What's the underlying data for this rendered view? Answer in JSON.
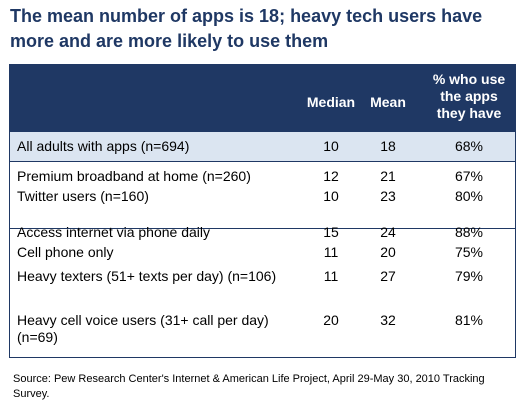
{
  "title": "The mean number of apps is 18; heavy tech users have more and are more likely to use them",
  "chart_data": {
    "type": "table",
    "columns": [
      "Median",
      "Mean",
      "% who use the apps they have"
    ],
    "rows": [
      {
        "label": "All adults with apps (n=694)",
        "median": "10",
        "mean": "18",
        "pct": "68%"
      },
      {
        "label": "Premium broadband at home (n=260)",
        "median": "12",
        "mean": "21",
        "pct": "67%"
      },
      {
        "label": "Twitter users (n=160)",
        "median": "10",
        "mean": "23",
        "pct": "80%"
      },
      {
        "label": "Access internet via phone daily",
        "median": "15",
        "mean": "24",
        "pct": "88%"
      },
      {
        "label": "Cell phone only",
        "median": "11",
        "mean": "20",
        "pct": "75%"
      },
      {
        "label": "Heavy texters (51+ texts per day) (n=106)",
        "median": "11",
        "mean": "27",
        "pct": "79%"
      },
      {
        "label": "Heavy cell voice users (31+ call per day) (n=69)",
        "median": "20",
        "mean": "32",
        "pct": "81%"
      }
    ]
  },
  "source": "Source:  Pew Research Center's Internet & American Life Project, April 29-May 30, 2010 Tracking Survey.",
  "colors": {
    "header": "#1f3864",
    "band": "#dbe5f1",
    "title": "#1f3864"
  }
}
